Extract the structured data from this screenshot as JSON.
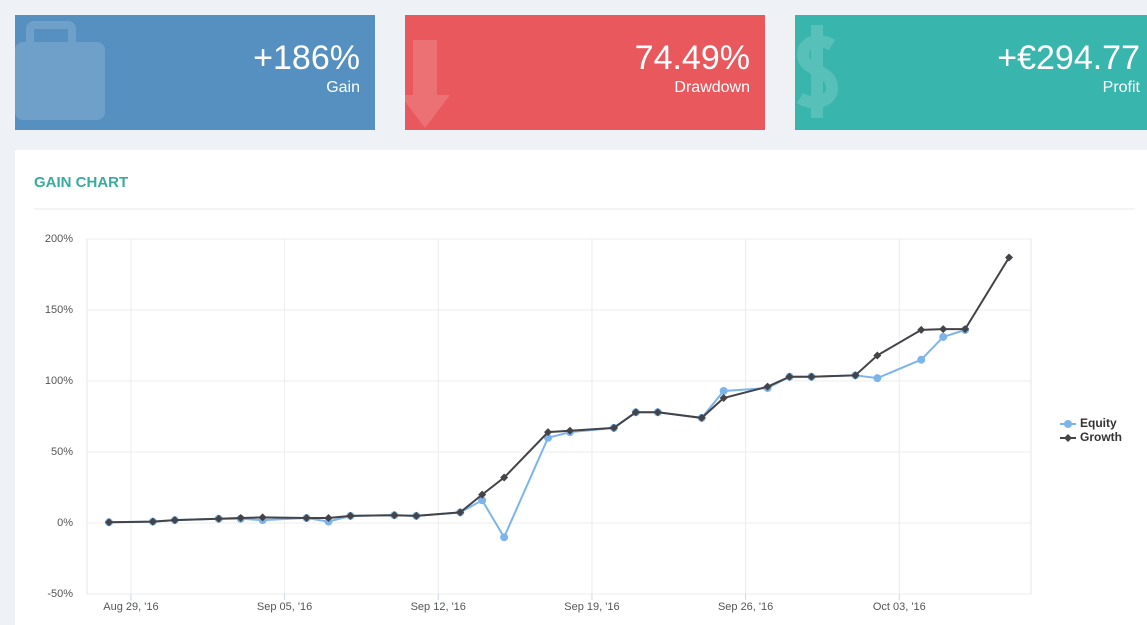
{
  "cards": [
    {
      "value": "+186%",
      "label": "Gain"
    },
    {
      "value": "74.49%",
      "label": "Drawdown"
    },
    {
      "value": "+€294.77",
      "label": "Profit"
    }
  ],
  "chart_data": {
    "type": "line",
    "title": "GAIN CHART",
    "x": [
      "2016-08-28",
      "2016-08-30",
      "2016-08-31",
      "2016-09-02",
      "2016-09-03",
      "2016-09-04",
      "2016-09-06",
      "2016-09-07",
      "2016-09-08",
      "2016-09-10",
      "2016-09-11",
      "2016-09-13",
      "2016-09-14",
      "2016-09-15",
      "2016-09-17",
      "2016-09-18",
      "2016-09-20",
      "2016-09-21",
      "2016-09-22",
      "2016-09-24",
      "2016-09-25",
      "2016-09-27",
      "2016-09-28",
      "2016-09-29",
      "2016-10-01",
      "2016-10-02",
      "2016-10-04",
      "2016-10-05",
      "2016-10-06",
      "2016-10-08"
    ],
    "series": [
      {
        "name": "Equity",
        "color": "#7cb5ec",
        "marker": "circle",
        "values": [
          0.5,
          1,
          2,
          3,
          3,
          2,
          3.5,
          1,
          5,
          5.5,
          5,
          7.5,
          16,
          -10,
          60,
          64,
          67,
          78,
          78,
          74,
          93,
          95,
          103,
          103,
          104,
          102,
          115,
          131,
          136,
          null
        ]
      },
      {
        "name": "Growth",
        "color": "#434348",
        "marker": "diamond",
        "values": [
          0.5,
          1,
          2,
          3,
          3.5,
          4,
          3.5,
          3.5,
          5,
          5.5,
          5,
          7.5,
          20,
          32,
          64,
          65,
          67,
          78,
          78,
          74,
          88,
          96,
          103,
          103,
          104,
          118,
          136,
          136.5,
          136.5,
          187
        ]
      }
    ],
    "xlim": [
      "2016-08-27",
      "2016-10-09"
    ],
    "xticks": [
      {
        "value": "2016-08-29",
        "label": "Aug 29, '16"
      },
      {
        "value": "2016-09-05",
        "label": "Sep 05, '16"
      },
      {
        "value": "2016-09-12",
        "label": "Sep 12, '16"
      },
      {
        "value": "2016-09-19",
        "label": "Sep 19, '16"
      },
      {
        "value": "2016-09-26",
        "label": "Sep 26, '16"
      },
      {
        "value": "2016-10-03",
        "label": "Oct 03, '16"
      }
    ],
    "ylim": [
      -50,
      200
    ],
    "yticks": [
      {
        "value": -50,
        "label": "-50%"
      },
      {
        "value": 0,
        "label": "0%"
      },
      {
        "value": 50,
        "label": "50%"
      },
      {
        "value": 100,
        "label": "100%"
      },
      {
        "value": 150,
        "label": "150%"
      },
      {
        "value": 200,
        "label": "200%"
      }
    ],
    "grid": true,
    "legend": "right"
  }
}
